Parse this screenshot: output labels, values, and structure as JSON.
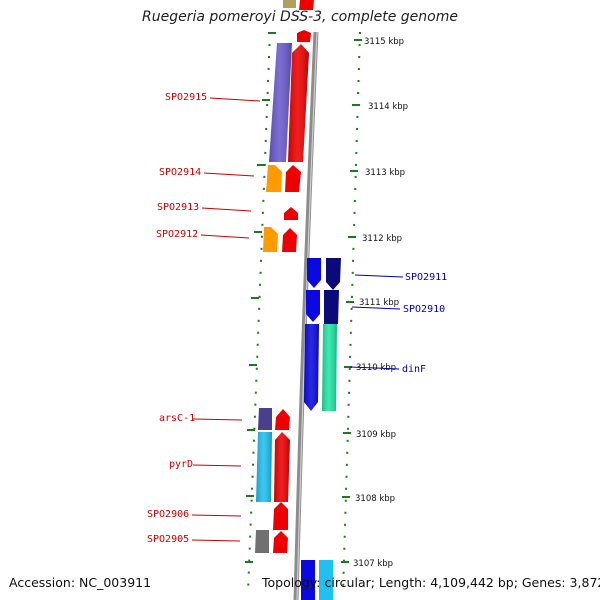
{
  "title": "Ruegeria pomeroyi DSS-3, complete genome",
  "footer": {
    "accession": "Accession: NC_003911",
    "topology": "Topology: circular; Length: 4,109,442 bp; Genes: 3,872"
  },
  "colors": {
    "backbone": "#8c8c8c",
    "tick": "#1e7a1e",
    "label_left": "#cc0000",
    "label_right": "#0000aa",
    "gene_red": "#ee0000",
    "gene_blue": "#0a0ae0",
    "gene_navy": "#0a0a78",
    "gene_purple": "#6a5acd",
    "gene_orange": "#ff9a00",
    "gene_teal": "#22e6a6",
    "gene_sky": "#20c0f0",
    "gene_slate": "#4a3f8a",
    "gene_gray": "#707070",
    "gene_olive": "#b0a060"
  },
  "scale_labels": [
    "3115 kbp",
    "3114 kbp",
    "3113 kbp",
    "3112 kbp",
    "3111 kbp",
    "3110 kbp",
    "3109 kbp",
    "3108 kbp",
    "3107 kbp"
  ],
  "gene_labels_left": [
    "SPO2915",
    "SPO2914",
    "SPO2913",
    "SPO2912",
    "arsC-1",
    "pyrD",
    "SPO2906",
    "SPO2905"
  ],
  "gene_labels_right": [
    "SPO2911",
    "SPO2910",
    "dinF"
  ]
}
